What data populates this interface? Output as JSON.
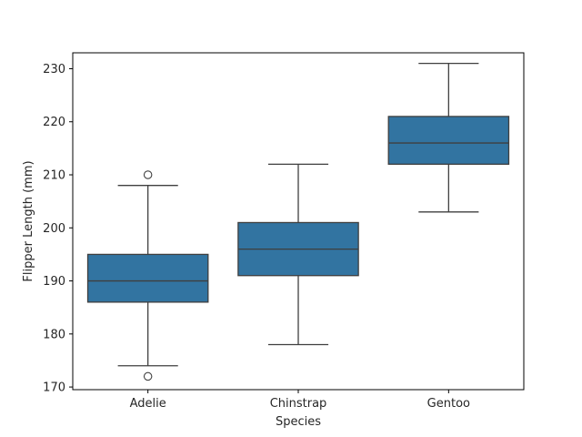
{
  "chart_data": {
    "type": "box",
    "title": "",
    "xlabel": "Species",
    "ylabel": "Flipper Length (mm)",
    "ylim": [
      169.5,
      233.0
    ],
    "yticks": [
      170,
      180,
      190,
      200,
      210,
      220,
      230
    ],
    "categories": [
      "Adelie",
      "Chinstrap",
      "Gentoo"
    ],
    "boxes": [
      {
        "name": "Adelie",
        "whisker_low": 174,
        "q1": 186,
        "median": 190,
        "q3": 195,
        "whisker_high": 208,
        "outliers": [
          172,
          210
        ]
      },
      {
        "name": "Chinstrap",
        "whisker_low": 178,
        "q1": 191,
        "median": 196,
        "q3": 201,
        "whisker_high": 212,
        "outliers": []
      },
      {
        "name": "Gentoo",
        "whisker_low": 203,
        "q1": 212,
        "median": 216,
        "q3": 221,
        "whisker_high": 231,
        "outliers": []
      }
    ],
    "colors": {
      "box_fill": "#3274a1",
      "line": "#3f3f3f",
      "axis": "#000000"
    }
  }
}
